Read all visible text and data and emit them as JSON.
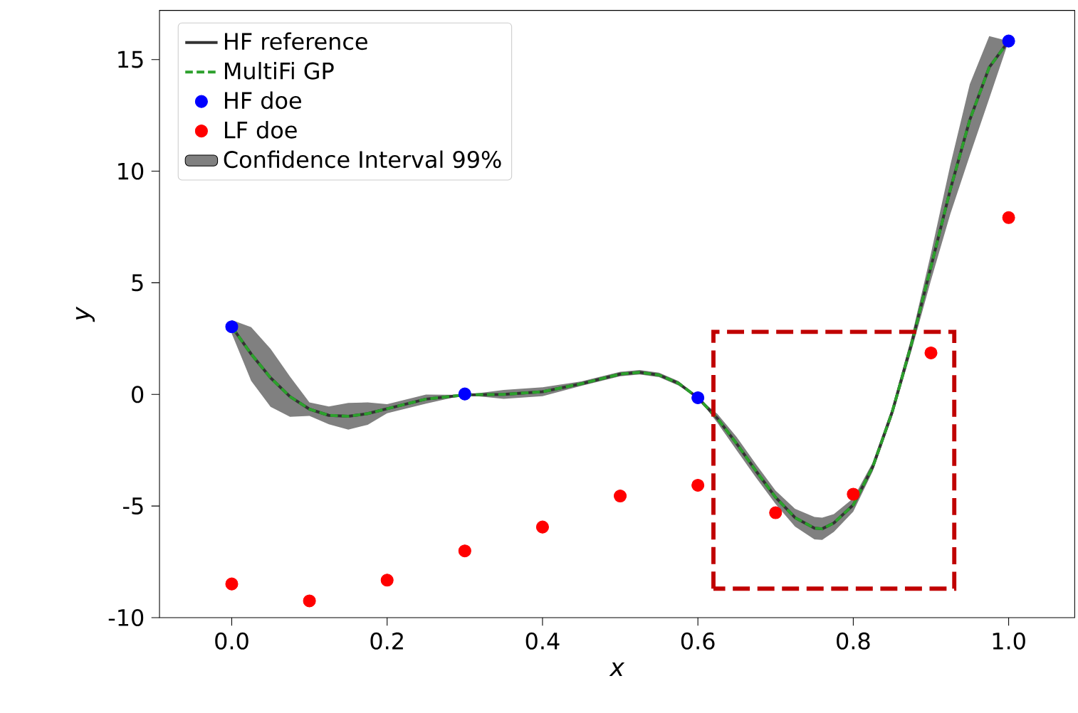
{
  "chart_data": {
    "type": "line",
    "xlabel": "x",
    "ylabel": "y",
    "xlim": [
      -0.093,
      1.085
    ],
    "ylim": [
      -10,
      17.2
    ],
    "xticks": [
      {
        "value": 0,
        "label": "0.0"
      },
      0.2,
      0.4,
      0.6,
      0.8,
      {
        "value": 1,
        "label": "1.0"
      }
    ],
    "yticks": [
      -10,
      -5,
      0,
      5,
      10,
      15
    ],
    "legend": "top left",
    "series": [
      {
        "name": "HF reference",
        "color": "#333333",
        "line_style": "solid",
        "x": [
          0,
          0.025,
          0.05,
          0.075,
          0.1,
          0.125,
          0.15,
          0.175,
          0.2,
          0.25,
          0.3,
          0.35,
          0.4,
          0.45,
          0.5,
          0.525,
          0.55,
          0.575,
          0.6,
          0.625,
          0.65,
          0.675,
          0.7,
          0.725,
          0.75,
          0.76,
          0.775,
          0.8,
          0.825,
          0.85,
          0.875,
          0.9,
          0.925,
          0.95,
          0.975,
          1.0
        ],
        "values": [
          3.03,
          1.81,
          0.74,
          -0.1,
          -0.66,
          -0.94,
          -0.98,
          -0.86,
          -0.64,
          -0.21,
          -0.02,
          0.0,
          0.12,
          0.48,
          0.91,
          0.99,
          0.87,
          0.5,
          -0.15,
          -1.07,
          -2.21,
          -3.44,
          -4.61,
          -5.52,
          -5.99,
          -6.02,
          -5.76,
          -4.95,
          -3.25,
          -0.8,
          2.27,
          5.71,
          9.19,
          12.3,
          14.65,
          15.83
        ]
      },
      {
        "name": "MultiFi GP",
        "color": "#2ca02c",
        "line_style": "dashed",
        "x": [
          0,
          0.025,
          0.05,
          0.075,
          0.1,
          0.125,
          0.15,
          0.175,
          0.2,
          0.25,
          0.3,
          0.35,
          0.4,
          0.45,
          0.5,
          0.525,
          0.55,
          0.575,
          0.6,
          0.625,
          0.65,
          0.675,
          0.7,
          0.725,
          0.75,
          0.76,
          0.775,
          0.8,
          0.825,
          0.85,
          0.875,
          0.9,
          0.925,
          0.95,
          0.975,
          1.0
        ],
        "values": [
          3.03,
          1.81,
          0.74,
          -0.1,
          -0.66,
          -0.94,
          -0.98,
          -0.86,
          -0.64,
          -0.21,
          -0.02,
          0.0,
          0.12,
          0.48,
          0.91,
          0.99,
          0.87,
          0.5,
          -0.15,
          -1.07,
          -2.21,
          -3.44,
          -4.61,
          -5.52,
          -5.99,
          -6.02,
          -5.76,
          -4.95,
          -3.25,
          -0.8,
          2.27,
          5.71,
          9.19,
          12.3,
          14.65,
          15.83
        ]
      },
      {
        "name": "HF doe",
        "type": "scatter",
        "color": "#0000ff",
        "marker": "circle",
        "x": [
          0,
          0.3,
          0.6,
          1.0
        ],
        "values": [
          3.03,
          0.02,
          -0.15,
          15.83
        ]
      },
      {
        "name": "LF doe",
        "type": "scatter",
        "color": "#ff0000",
        "marker": "circle",
        "x": [
          0,
          0.1,
          0.2,
          0.3,
          0.4,
          0.5,
          0.6,
          0.7,
          0.8,
          0.9,
          1.0
        ],
        "values": [
          -8.49,
          -9.25,
          -8.32,
          -7.01,
          -5.94,
          -4.55,
          -4.07,
          -5.3,
          -4.47,
          1.86,
          7.92
        ]
      },
      {
        "name": "Confidence Interval 99%",
        "type": "area",
        "color": "#808080",
        "x": [
          0,
          0.025,
          0.05,
          0.075,
          0.1,
          0.125,
          0.15,
          0.175,
          0.2,
          0.25,
          0.3,
          0.35,
          0.4,
          0.45,
          0.5,
          0.525,
          0.55,
          0.575,
          0.6,
          0.625,
          0.65,
          0.675,
          0.7,
          0.725,
          0.75,
          0.76,
          0.775,
          0.8,
          0.825,
          0.85,
          0.875,
          0.9,
          0.925,
          0.95,
          0.975,
          1.0
        ],
        "values": [
          null,
          null,
          null,
          null,
          null,
          null,
          null,
          null,
          null,
          null,
          null,
          null,
          null,
          null,
          null,
          null,
          null,
          null,
          null,
          null,
          null,
          null,
          null,
          null,
          null,
          null,
          null,
          null,
          null,
          null,
          null,
          null,
          null,
          null,
          null,
          null
        ],
        "upper": [
          3.33,
          3.01,
          2.04,
          0.8,
          -0.36,
          -0.54,
          -0.38,
          -0.36,
          -0.44,
          -0.01,
          -0.02,
          0.2,
          0.32,
          0.58,
          1.01,
          1.09,
          0.97,
          0.6,
          -0.15,
          -0.87,
          -1.91,
          -3.14,
          -4.31,
          -5.12,
          -5.49,
          -5.52,
          -5.36,
          -4.65,
          -3.05,
          -0.6,
          2.57,
          6.31,
          10.29,
          13.9,
          16.05,
          15.83
        ],
        "lower": [
          2.73,
          0.61,
          -0.56,
          -1.0,
          -0.96,
          -1.34,
          -1.58,
          -1.36,
          -0.84,
          -0.41,
          -0.02,
          -0.2,
          -0.08,
          0.38,
          0.81,
          0.89,
          0.77,
          0.4,
          -0.15,
          -1.27,
          -2.51,
          -3.74,
          -4.91,
          -5.92,
          -6.49,
          -6.52,
          -6.16,
          -5.25,
          -3.45,
          -1.0,
          1.97,
          5.11,
          8.09,
          10.7,
          13.25,
          15.83
        ]
      }
    ]
  }
}
